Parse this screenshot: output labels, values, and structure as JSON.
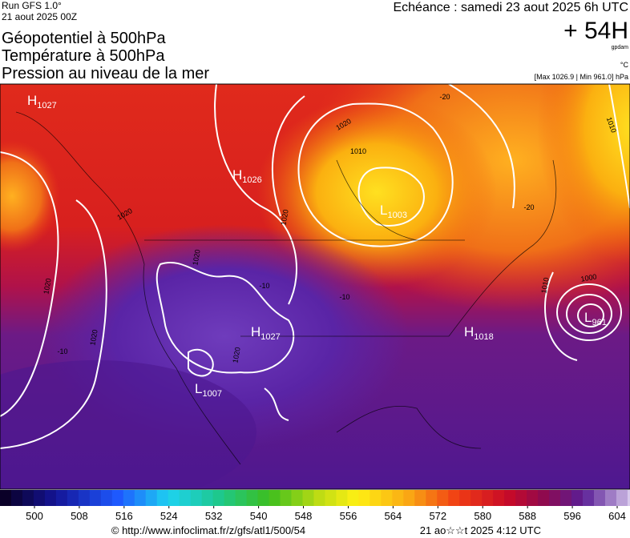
{
  "header": {
    "run": "Run GFS 1.0°",
    "date": "21 aout 2025 00Z",
    "titles": [
      "Géopotentiel à 500hPa",
      "Température à 500hPa",
      "Pression au niveau de la mer"
    ],
    "forecast": "Echéance : samedi 23 aout 2025 6h UTC",
    "lead": "+ 54H",
    "unit_geo": "gpdam",
    "unit_temp": "°C",
    "range": "[Max 1026.9 | Min 961.0] hPa"
  },
  "map": {
    "centers": [
      {
        "letter": "H",
        "value": 1027
      },
      {
        "letter": "H",
        "value": 1026
      },
      {
        "letter": "L",
        "value": 1003
      },
      {
        "letter": "H",
        "value": 1027
      },
      {
        "letter": "L",
        "value": 1007
      },
      {
        "letter": "H",
        "value": 1018
      },
      {
        "letter": "L",
        "value": 961
      }
    ],
    "contour_labels": [
      1020,
      1020,
      1020,
      1020,
      1020,
      1020,
      1010,
      1010,
      1000,
      1010,
      1020
    ],
    "temperature_labels": [
      -10,
      -10,
      -10,
      -20,
      -20
    ]
  },
  "colorbar": {
    "ticks": [
      500,
      508,
      516,
      524,
      532,
      540,
      548,
      556,
      564,
      572,
      580,
      588,
      596,
      604
    ]
  },
  "footer": {
    "source": "© http://www.infoclimat.fr/z/gfs/atl1/500/54",
    "timestamp": "21 ao☆☆t 2025  4:12 UTC"
  }
}
